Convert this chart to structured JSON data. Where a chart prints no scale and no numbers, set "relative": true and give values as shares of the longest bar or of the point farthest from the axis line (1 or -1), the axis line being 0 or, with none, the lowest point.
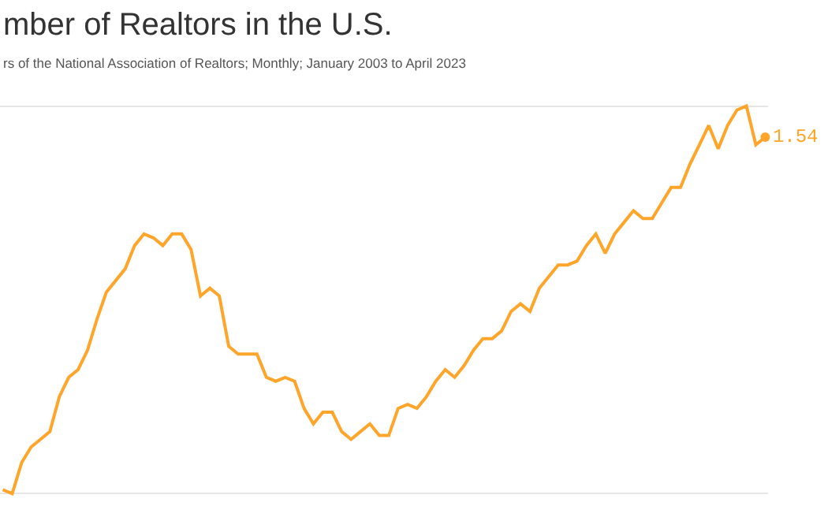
{
  "chart_data": {
    "type": "line",
    "title": "mber of Realtors in the U.S.",
    "subtitle": "rs of the National Association of Realtors; Monthly; January 2003 to April 2023",
    "relative": true,
    "grid": "y",
    "marker": "none",
    "line_style": "solid",
    "annotations": [
      "1.54"
    ],
    "categories": [
      null,
      null,
      null,
      null,
      null,
      null,
      null,
      null,
      null,
      null,
      null,
      null,
      null,
      null,
      null,
      null,
      null,
      null,
      null,
      null,
      null,
      null,
      null,
      null,
      null,
      null,
      null,
      null,
      null,
      null,
      null,
      null,
      null,
      null,
      null,
      null,
      null,
      null,
      null,
      null,
      null,
      null,
      null,
      null,
      null,
      null,
      null,
      null,
      null,
      null,
      null,
      null,
      null,
      null,
      null,
      null,
      null,
      null,
      null,
      null,
      null,
      null,
      null,
      null,
      null,
      null,
      null,
      null,
      null,
      null,
      null,
      null,
      null,
      null,
      null,
      null,
      null,
      null,
      null,
      null,
      null,
      null
    ],
    "series": [
      {
        "color": "#ffa52a",
        "values": [
          0.01,
          0,
          0.08,
          0.12,
          0.14,
          0.16,
          0.25,
          0.3,
          0.32,
          0.37,
          0.45,
          0.52,
          0.55,
          0.58,
          0.64,
          0.67,
          0.66,
          0.64,
          0.67,
          0.67,
          0.63,
          0.51,
          0.53,
          0.51,
          0.38,
          0.36,
          0.36,
          0.36,
          0.3,
          0.29,
          0.3,
          0.29,
          0.22,
          0.18,
          0.21,
          0.21,
          0.16,
          0.14,
          0.16,
          0.18,
          0.15,
          0.15,
          0.22,
          0.23,
          0.22,
          0.25,
          0.29,
          0.32,
          0.3,
          0.33,
          0.37,
          0.4,
          0.4,
          0.42,
          0.47,
          0.49,
          0.47,
          0.53,
          0.56,
          0.59,
          0.59,
          0.6,
          0.64,
          0.67,
          0.62,
          0.67,
          0.7,
          0.73,
          0.71,
          0.71,
          0.75,
          0.79,
          0.79,
          0.85,
          0.9,
          0.95,
          0.89,
          0.95,
          0.99,
          1.0,
          0.9,
          0.92
        ]
      }
    ]
  }
}
